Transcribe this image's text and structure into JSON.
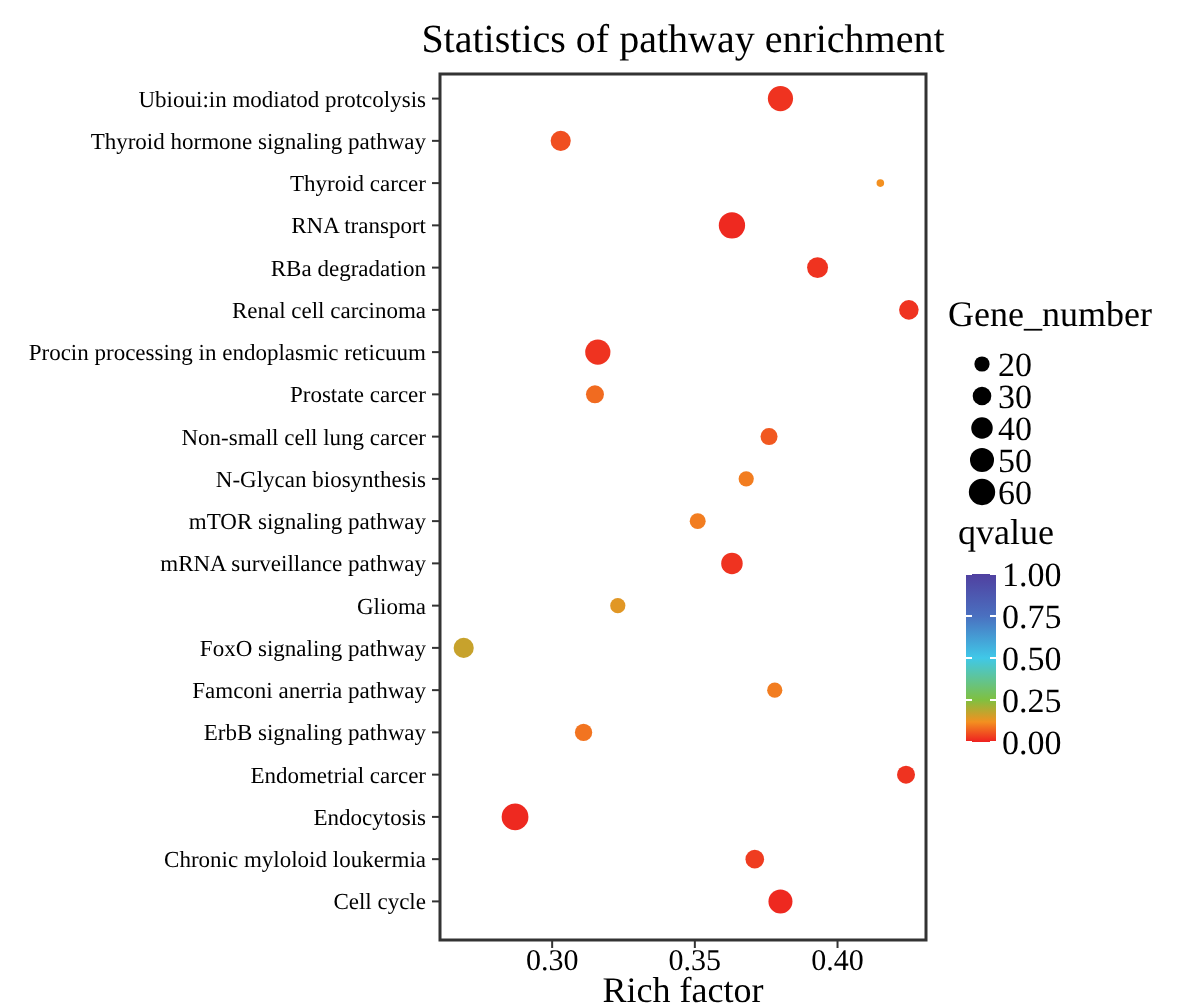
{
  "chart_data": {
    "type": "bubble",
    "title": "Statistics of pathway enrichment",
    "xlabel": "Rich factor",
    "legend_title": "Gene_number",
    "clabel": "qvalue",
    "categories": [
      "Ubioui:in modiatod protcolysis",
      "Thyroid hormone signaling pathway",
      "Thyroid carcer",
      "RNA transport",
      "RBa degradation",
      "Renal cell carcinoma",
      "Procin processing in endoplasmic reticuum",
      "Prostate carcer",
      "Non-small cell lung carcer",
      "N-Glycan biosynthesis",
      "mTOR signaling pathway",
      "mRNA surveillance pathway",
      "Glioma",
      "FoxO signaling pathway",
      "Famconi anerria pathway",
      "ErbB signaling pathway",
      "Endometrial carcer",
      "Endocytosis",
      "Chronic myloloid loukermia",
      "Cell cycle"
    ],
    "values": [
      0.38,
      0.303,
      0.415,
      0.363,
      0.393,
      0.425,
      0.316,
      0.315,
      0.376,
      0.368,
      0.351,
      0.363,
      0.323,
      0.269,
      0.378,
      0.311,
      0.424,
      0.287,
      0.371,
      0.38
    ],
    "sizes": [
      55,
      35,
      5,
      60,
      38,
      33,
      55,
      28,
      25,
      20,
      22,
      40,
      20,
      35,
      20,
      26,
      28,
      62,
      30,
      50
    ],
    "cvalues": [
      0.02,
      0.05,
      0.12,
      0.01,
      0.02,
      0.02,
      0.02,
      0.08,
      0.06,
      0.1,
      0.1,
      0.02,
      0.14,
      0.17,
      0.1,
      0.09,
      0.02,
      0.01,
      0.03,
      0.01
    ],
    "size_legend": [
      {
        "value": 20,
        "label": "20"
      },
      {
        "value": 30,
        "label": "30"
      },
      {
        "value": 40,
        "label": "40"
      },
      {
        "value": 50,
        "label": "50"
      },
      {
        "value": 60,
        "label": "60"
      }
    ],
    "orientation": "horizontal",
    "xlim": [
      0.2607,
      0.431
    ],
    "xticks": [
      {
        "value": 0.3,
        "label": "0.30"
      },
      {
        "value": 0.35,
        "label": "0.35"
      },
      {
        "value": 0.4,
        "label": "0.40"
      }
    ],
    "clim": [
      0,
      1
    ],
    "cticks": [
      {
        "value": 0,
        "label": "0.00"
      },
      {
        "value": 0.25,
        "label": "0.25"
      },
      {
        "value": 0.5,
        "label": "0.50"
      },
      {
        "value": 0.75,
        "label": "0.75"
      },
      {
        "value": 1,
        "label": "1.00"
      }
    ],
    "grid": false,
    "marker": "circle"
  }
}
